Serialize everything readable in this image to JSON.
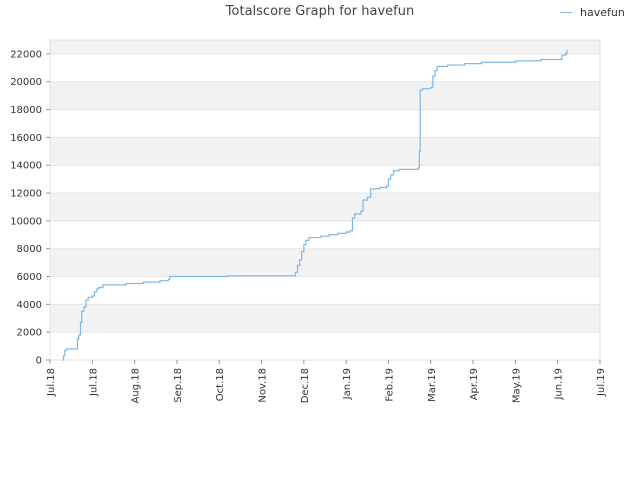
{
  "chart_data": {
    "type": "line",
    "title": "Totalscore Graph for havefun",
    "xlabel": "",
    "ylabel": "",
    "ylim": [
      0,
      23000
    ],
    "yticks": [
      0,
      2000,
      4000,
      6000,
      8000,
      10000,
      12000,
      14000,
      16000,
      18000,
      20000,
      22000
    ],
    "xticks": [
      "Jul.18",
      "Jul.18",
      "Aug.18",
      "Sep.18",
      "Oct.18",
      "Nov.18",
      "Dec.18",
      "Jan.19",
      "Feb.19",
      "Mar.19",
      "Apr.19",
      "May.19",
      "Jun.19",
      "Jul.19"
    ],
    "xtick_index_range": [
      0,
      13
    ],
    "grid": "horizontal bands",
    "legend_position": "top-right",
    "colors": {
      "line": "#7fb7e6",
      "band": "#f2f2f2",
      "grid": "#e6e6e6"
    },
    "series": [
      {
        "name": "havefun",
        "step": true,
        "points": [
          [
            0.3,
            0
          ],
          [
            0.32,
            300
          ],
          [
            0.35,
            700
          ],
          [
            0.4,
            800
          ],
          [
            0.62,
            800
          ],
          [
            0.65,
            1500
          ],
          [
            0.68,
            1800
          ],
          [
            0.72,
            2700
          ],
          [
            0.75,
            3500
          ],
          [
            0.8,
            3800
          ],
          [
            0.85,
            4300
          ],
          [
            0.9,
            4500
          ],
          [
            1.0,
            4600
          ],
          [
            1.05,
            4900
          ],
          [
            1.1,
            5100
          ],
          [
            1.15,
            5200
          ],
          [
            1.25,
            5400
          ],
          [
            1.8,
            5500
          ],
          [
            2.2,
            5600
          ],
          [
            2.6,
            5700
          ],
          [
            2.8,
            5800
          ],
          [
            2.83,
            6000
          ],
          [
            3.5,
            6000
          ],
          [
            4.2,
            6050
          ],
          [
            5.75,
            6050
          ],
          [
            5.8,
            6300
          ],
          [
            5.85,
            6800
          ],
          [
            5.9,
            7200
          ],
          [
            5.95,
            7800
          ],
          [
            6.0,
            8300
          ],
          [
            6.05,
            8600
          ],
          [
            6.12,
            8800
          ],
          [
            6.4,
            8900
          ],
          [
            6.6,
            9000
          ],
          [
            6.8,
            9100
          ],
          [
            7.0,
            9200
          ],
          [
            7.1,
            9300
          ],
          [
            7.15,
            10200
          ],
          [
            7.2,
            10500
          ],
          [
            7.35,
            10700
          ],
          [
            7.4,
            11500
          ],
          [
            7.5,
            11700
          ],
          [
            7.58,
            12300
          ],
          [
            7.8,
            12400
          ],
          [
            7.95,
            12500
          ],
          [
            8.0,
            13000
          ],
          [
            8.05,
            13300
          ],
          [
            8.12,
            13600
          ],
          [
            8.25,
            13700
          ],
          [
            8.55,
            13700
          ],
          [
            8.7,
            13800
          ],
          [
            8.73,
            15000
          ],
          [
            8.75,
            19400
          ],
          [
            8.8,
            19500
          ],
          [
            9.0,
            19600
          ],
          [
            9.05,
            20400
          ],
          [
            9.1,
            20800
          ],
          [
            9.15,
            21100
          ],
          [
            9.4,
            21200
          ],
          [
            9.8,
            21300
          ],
          [
            10.2,
            21400
          ],
          [
            11.0,
            21500
          ],
          [
            11.6,
            21600
          ],
          [
            12.05,
            21600
          ],
          [
            12.1,
            21900
          ],
          [
            12.18,
            22000
          ],
          [
            12.22,
            22300
          ]
        ]
      }
    ]
  }
}
